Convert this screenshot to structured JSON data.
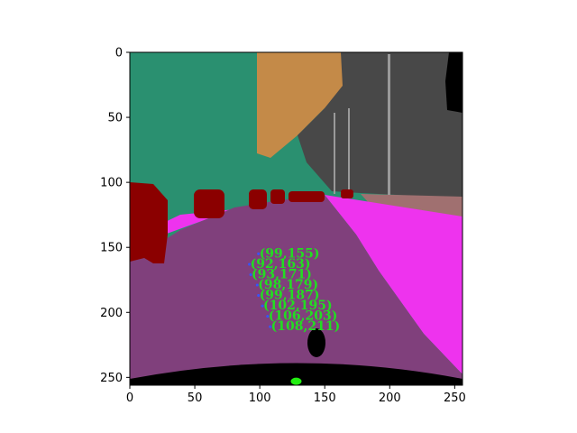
{
  "chart_data": {
    "type": "scatter",
    "title": "",
    "xlabel": "",
    "ylabel": "",
    "xlim": [
      0,
      256
    ],
    "ylim": [
      256,
      0
    ],
    "x_ticks": [
      0,
      50,
      100,
      150,
      200,
      250
    ],
    "y_ticks": [
      0,
      50,
      100,
      150,
      200,
      250
    ],
    "grid": false,
    "background_image": "semantic-segmentation-road-scene",
    "points": [
      {
        "x": 99,
        "y": 155,
        "label": "(99,155)"
      },
      {
        "x": 92,
        "y": 163,
        "label": "(92,163)"
      },
      {
        "x": 93,
        "y": 171,
        "label": "(93,171)"
      },
      {
        "x": 98,
        "y": 179,
        "label": "(98,179)"
      },
      {
        "x": 99,
        "y": 187,
        "label": "(99,187)"
      },
      {
        "x": 102,
        "y": 195,
        "label": "(102,195)"
      },
      {
        "x": 106,
        "y": 203,
        "label": "(106,203)"
      },
      {
        "x": 108,
        "y": 211,
        "label": "(108,211)"
      }
    ],
    "marker": {
      "x": 128,
      "y": 253
    },
    "colors": {
      "label": "#22dd22",
      "marker": "#22ee11",
      "point": "#3355ff",
      "sky_tree": "#2a9070",
      "building_brown": "#c48a48",
      "building_gray": "#484848",
      "road": "#80407c",
      "sidewalk": "#ee33ee",
      "car": "#8b0000",
      "ego_hood": "#000000",
      "terrain": "#a07070"
    }
  }
}
